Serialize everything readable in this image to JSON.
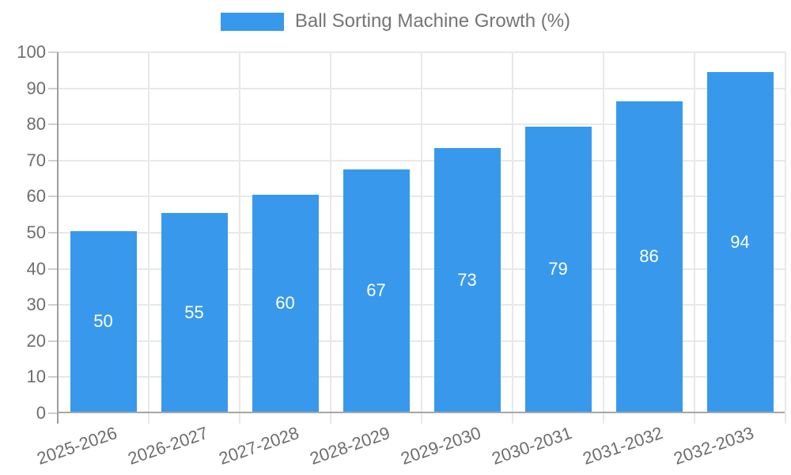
{
  "legend": {
    "label": "Ball Sorting Machine Growth (%)"
  },
  "chart_data": {
    "type": "bar",
    "title": "Ball Sorting Machine Growth (%)",
    "categories": [
      "2025-2026",
      "2026-2027",
      "2027-2028",
      "2028-2029",
      "2029-2030",
      "2030-2031",
      "2031-2032",
      "2032-2033"
    ],
    "values": [
      50,
      55,
      60,
      67,
      73,
      79,
      86,
      94
    ],
    "xlabel": "",
    "ylabel": "",
    "ylim": [
      0,
      100
    ],
    "ytick_step": 10,
    "yticks": [
      0,
      10,
      20,
      30,
      40,
      50,
      60,
      70,
      80,
      90,
      100
    ],
    "grid": true,
    "legend_position": "top-center",
    "bar_color": "#3899ec",
    "bar_label_color": "#ffffff",
    "grid_color": "#e8e8e8",
    "axis_color": "#9e9e9e",
    "text_color": "#6e6e6e",
    "legend_text_color": "#757575"
  }
}
